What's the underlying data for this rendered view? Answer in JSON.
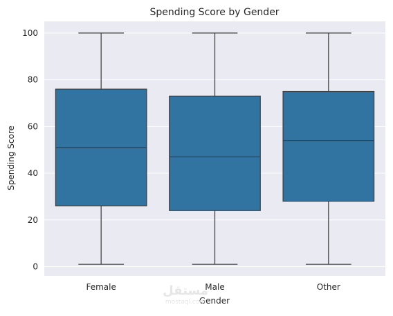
{
  "chart_data": {
    "type": "box",
    "title": "Spending Score by Gender",
    "xlabel": "Gender",
    "ylabel": "Spending Score",
    "categories": [
      "Female",
      "Male",
      "Other"
    ],
    "boxes": [
      {
        "category": "Female",
        "min": 1,
        "q1": 26,
        "median": 51,
        "q3": 76,
        "max": 100
      },
      {
        "category": "Male",
        "min": 1,
        "q1": 24,
        "median": 47,
        "q3": 73,
        "max": 100
      },
      {
        "category": "Other",
        "min": 1,
        "q1": 28,
        "median": 54,
        "q3": 75,
        "max": 100
      }
    ],
    "ylim": [
      -4,
      105
    ],
    "yticks": [
      0,
      20,
      40,
      60,
      80,
      100
    ],
    "grid": true,
    "colors": {
      "box_fill": "#3274a1",
      "box_edge": "#3f3f3f",
      "plot_background": "#eaeaf2",
      "grid": "#ffffff"
    }
  },
  "watermark": {
    "arabic": "مستقل",
    "latin": "mostaql.com"
  }
}
